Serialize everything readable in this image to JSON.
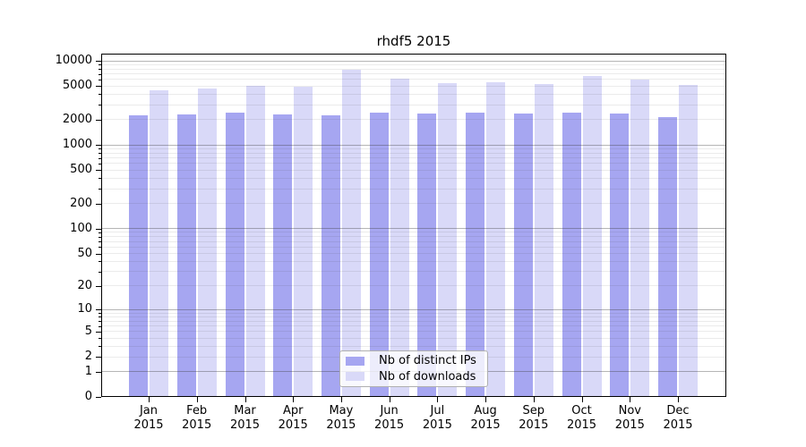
{
  "chart_data": {
    "type": "bar",
    "title": "rhdf5 2015",
    "year": "2015",
    "categories": [
      "Jan",
      "Feb",
      "Mar",
      "Apr",
      "May",
      "Jun",
      "Jul",
      "Aug",
      "Sep",
      "Oct",
      "Nov",
      "Dec"
    ],
    "series": [
      {
        "name": "Nb of distinct IPs",
        "color": "#a6a6f1",
        "values": [
          2240,
          2300,
          2410,
          2300,
          2250,
          2410,
          2360,
          2410,
          2360,
          2410,
          2360,
          2130
        ]
      },
      {
        "name": "Nb of downloads",
        "color": "#d9d9f8",
        "values": [
          4460,
          4680,
          5000,
          4980,
          7800,
          6120,
          5430,
          5560,
          5300,
          6590,
          5980,
          5170
        ]
      }
    ],
    "y_axis": {
      "scale": "log10(x+1)",
      "tick_labels": [
        "0",
        "1",
        "2",
        "5",
        "10",
        "20",
        "50",
        "100",
        "200",
        "500",
        "1000",
        "2000",
        "5000",
        "10000"
      ],
      "tick_values": [
        0,
        1,
        2,
        5,
        10,
        20,
        50,
        100,
        200,
        500,
        1000,
        2000,
        5000,
        10000
      ],
      "ylim": [
        0,
        10000
      ]
    },
    "grid": "on, drawn above bars; decade lines darker",
    "legend": {
      "position": "bottom-center-inside"
    }
  }
}
